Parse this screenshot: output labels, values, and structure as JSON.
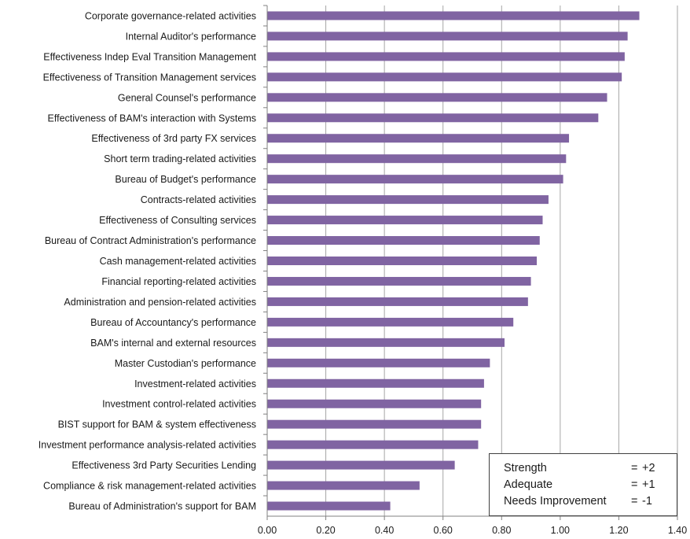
{
  "chart_data": {
    "type": "bar",
    "orientation": "horizontal",
    "categories": [
      "Corporate governance-related activities",
      "Internal Auditor's performance",
      "Effectiveness Indep Eval Transition Management",
      "Effectiveness of Transition Management services",
      "General Counsel's performance",
      "Effectiveness of BAM's interaction with Systems",
      "Effectiveness of 3rd party FX services",
      "Short term trading-related activities",
      "Bureau of Budget's performance",
      "Contracts-related activities",
      "Effectiveness of Consulting services",
      "Bureau of Contract Administration's performance",
      "Cash management-related activities",
      "Financial reporting-related activities",
      "Administration and pension-related activities",
      "Bureau of Accountancy's performance",
      "BAM's internal and external resources",
      "Master Custodian's performance",
      "Investment-related activities",
      "Investment control-related activities",
      "BIST support for BAM & system effectiveness",
      "Investment performance analysis-related activities",
      "Effectiveness 3rd Party Securities Lending",
      "Compliance & risk management-related activities",
      "Bureau of Administration's support for BAM"
    ],
    "values": [
      1.27,
      1.23,
      1.22,
      1.21,
      1.16,
      1.13,
      1.03,
      1.02,
      1.01,
      0.96,
      0.94,
      0.93,
      0.92,
      0.9,
      0.89,
      0.84,
      0.81,
      0.76,
      0.74,
      0.73,
      0.73,
      0.72,
      0.64,
      0.52,
      0.42
    ],
    "xlim": [
      0,
      1.4
    ],
    "xticks": [
      "0.00",
      "0.20",
      "0.40",
      "0.60",
      "0.80",
      "1.00",
      "1.20",
      "1.40"
    ],
    "grid": true,
    "bar_color": "#8064a2",
    "title": "",
    "xlabel": "",
    "ylabel": ""
  },
  "legend_box": {
    "placement": "bottom-right",
    "rows": [
      {
        "label": "Strength",
        "eq": "=",
        "value": "+2"
      },
      {
        "label": "Adequate",
        "eq": "=",
        "value": "+1"
      },
      {
        "label": "Needs Improvement",
        "eq": "=",
        "value": "-1"
      }
    ]
  }
}
